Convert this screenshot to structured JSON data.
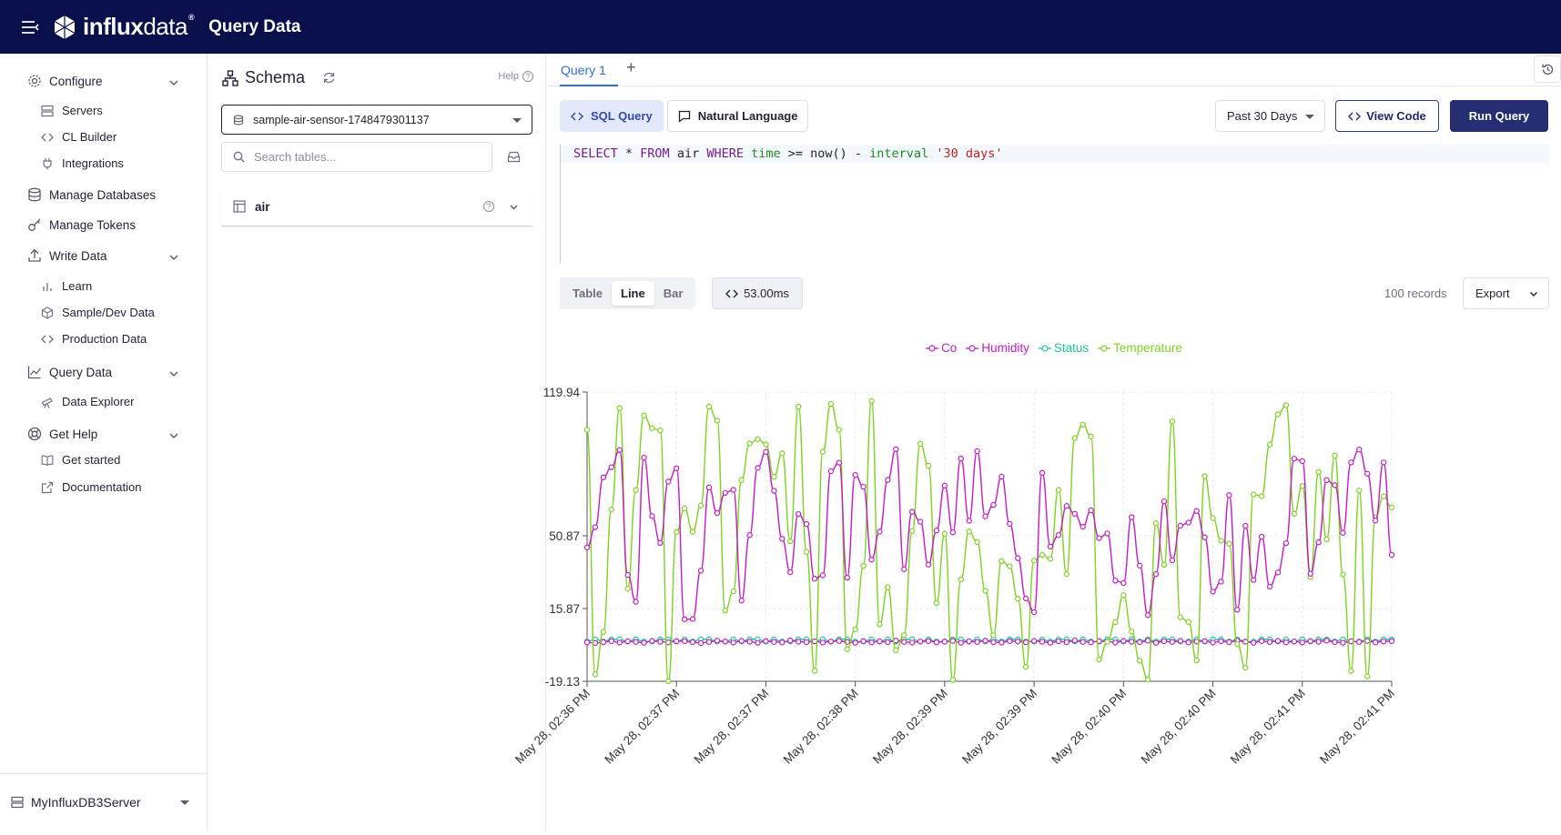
{
  "header": {
    "brand_bold": "influx",
    "brand_light": "data",
    "title": "Query Data"
  },
  "sidebar": {
    "configure": "Configure",
    "servers": "Servers",
    "cl_builder": "CL Builder",
    "integrations": "Integrations",
    "manage_databases": "Manage Databases",
    "manage_tokens": "Manage Tokens",
    "write_data": "Write Data",
    "learn": "Learn",
    "sample_dev_data": "Sample/Dev Data",
    "production_data": "Production Data",
    "query_data": "Query Data",
    "data_explorer": "Data Explorer",
    "get_help": "Get Help",
    "get_started": "Get started",
    "documentation": "Documentation",
    "server_name": "MyInfluxDB3Server"
  },
  "schema": {
    "title": "Schema",
    "help": "Help",
    "database": "sample-air-sensor-1748479301137",
    "search_placeholder": "Search tables...",
    "tables": [
      "air"
    ]
  },
  "query": {
    "tab": "Query 1",
    "sql_mode": "SQL Query",
    "natural_mode": "Natural Language",
    "time_range": "Past 30 Days",
    "view_code": "View Code",
    "run": "Run Query",
    "sql_parts": {
      "select": "SELECT",
      "star": " * ",
      "from": "FROM",
      "table": " air ",
      "where": "WHERE",
      "time": " time",
      "op": " >= now() - ",
      "interval": "interval",
      "value": " '30 days'"
    }
  },
  "results": {
    "views": [
      "Table",
      "Line",
      "Bar"
    ],
    "active_view": "Line",
    "timing": "53.00ms",
    "records": "100 records",
    "export": "Export"
  },
  "colors": {
    "co": "#c41ec4",
    "humidity": "#c41ec4",
    "status": "#1ec79a",
    "temperature": "#7ed321",
    "brand": "#080f4a",
    "accent": "#2f6fd6"
  },
  "chart_data": {
    "type": "line",
    "yticks": [
      "119.94",
      "50.87",
      "15.87",
      "-19.13"
    ],
    "xticks": [
      "May 28, 02:36 PM",
      "May 28, 02:37 PM",
      "May 28, 02:37 PM",
      "May 28, 02:38 PM",
      "May 28, 02:39 PM",
      "May 28, 02:39 PM",
      "May 28, 02:40 PM",
      "May 28, 02:40 PM",
      "May 28, 02:41 PM",
      "May 28, 02:41 PM"
    ],
    "ylim": [
      -19.13,
      119.94
    ],
    "legend_position": "top-center",
    "series": [
      {
        "name": "Co",
        "values": [
          -0.4,
          -0.7,
          -0.3,
          0.2,
          -0.5,
          0.1,
          -0.2,
          -0.6,
          0.3,
          -0.1,
          -0.4,
          0.2,
          0.1,
          -0.3,
          -0.7,
          -0.2,
          0.4,
          0.0,
          -0.5,
          0.3,
          -0.1,
          -0.6,
          0.2,
          -0.2,
          -0.4,
          0.5,
          -0.1,
          -0.3,
          0.1,
          -0.5,
          0.0,
          0.3,
          -0.2,
          -0.6,
          0.2,
          -0.4,
          0.1,
          -0.3,
          0.4,
          -0.2,
          -0.5,
          0.0,
          0.2,
          -0.4,
          -0.1,
          0.3,
          -0.6,
          0.1,
          -0.2,
          0.4,
          -0.3,
          -0.5,
          0.2,
          0.0,
          -0.4,
          0.3,
          -0.1,
          -0.6,
          0.1,
          -0.3,
          0.5,
          -0.2,
          -0.4,
          0.2,
          0.0,
          -0.5,
          0.3,
          -0.1,
          -0.3,
          0.4,
          -0.6,
          0.1,
          -0.2,
          0.3,
          -0.4,
          0.0,
          0.2,
          -0.5,
          0.1,
          -0.3,
          0.4,
          -0.1,
          -0.6,
          0.2,
          -0.2,
          0.3,
          -0.4,
          0.0,
          -0.5,
          0.2,
          -0.1,
          0.4,
          -0.3,
          -0.6,
          0.1,
          -0.2,
          0.3,
          -0.4,
          0.0,
          0.2
        ]
      },
      {
        "name": "Humidity",
        "values": [
          45.2,
          55.0,
          78.9,
          83.8,
          92.1,
          32.0,
          19.1,
          88.4,
          60.3,
          47.4,
          76.9,
          83.3,
          10.7,
          10.8,
          34.1,
          74.1,
          61.8,
          71.5,
          72.9,
          19.7,
          51.2,
          83.5,
          91.2,
          72.5,
          49.4,
          33.3,
          61.3,
          56.5,
          30.2,
          31.9,
          81.9,
          86.0,
          30.7,
          80.1,
          74.4,
          39.4,
          52.9,
          77.7,
          92.5,
          34.8,
          62.4,
          57.6,
          37.0,
          53.4,
          75.0,
          52.5,
          88.0,
          58.1,
          91.5,
          60.2,
          65.7,
          79.3,
          56.6,
          40.1,
          20.7,
          14.1,
          81.1,
          45.7,
          51.2,
          65.2,
          61.4,
          55.2,
          63.1,
          49.7,
          52.0,
          29.3,
          28.1,
          59.8,
          36.5,
          12.7,
          32.4,
          67.4,
          39.1,
          55.7,
          57.2,
          62.8,
          50.1,
          24.0,
          28.8,
          70.4,
          15.3,
          55.7,
          29.6,
          50.4,
          26.4,
          33.2,
          47.3,
          87.9,
          86.7,
          32.6,
          47.7,
          77.6,
          75.2,
          52.3,
          86.1,
          92.3,
          80.7,
          58.2,
          86.1,
          41.7
        ]
      },
      {
        "name": "Status",
        "values": [
          0,
          1,
          0,
          1,
          1,
          0,
          1,
          0,
          0,
          1,
          1,
          0,
          1,
          0,
          1,
          1,
          0,
          0,
          1,
          0,
          1,
          1,
          0,
          1,
          0,
          0,
          1,
          1,
          0,
          1,
          0,
          1,
          1,
          0,
          0,
          1,
          0,
          1,
          0,
          1,
          1,
          0,
          1,
          0,
          0,
          1,
          1,
          0,
          1,
          0,
          1,
          0,
          1,
          1,
          0,
          0,
          1,
          0,
          1,
          1,
          0,
          1,
          0,
          0,
          1,
          1,
          0,
          1,
          0,
          1,
          0,
          1,
          1,
          0,
          0,
          1,
          0,
          1,
          1,
          0,
          1,
          0,
          0,
          1,
          1,
          0,
          1,
          0,
          1,
          0,
          1,
          1,
          0,
          1,
          0,
          0,
          1,
          0,
          1,
          1
        ]
      },
      {
        "name": "Temperature",
        "values": [
          101.8,
          -15.8,
          4.6,
          63.5,
          112.2,
          25.4,
          72.8,
          108.7,
          102.6,
          101.5,
          -19.1,
          52.7,
          64.0,
          52.8,
          65.4,
          112.9,
          106.2,
          14.9,
          24.2,
          77.6,
          95.2,
          97.3,
          94.8,
          79.2,
          90.5,
          48.2,
          112.9,
          43.1,
          -14.1,
          91.2,
          114.2,
          101.8,
          -3.7,
          5.9,
          36.4,
          115.6,
          8.3,
          26.1,
          -4.2,
          3.1,
          53.1,
          95.1,
          84.5,
          18.6,
          51.8,
          -18.5,
          29.8,
          52.9,
          47.9,
          24.4,
          3.0,
          38.7,
          36.2,
          20.6,
          -12.2,
          38.9,
          41.7,
          39.7,
          72.9,
          32.5,
          97.8,
          104.3,
          98.6,
          -8.7,
          -0.2,
          9.3,
          22.3,
          4.8,
          -9.2,
          -18.2,
          56.9,
          36.9,
          105.8,
          11.7,
          9.4,
          -9.1,
          79.5,
          59.3,
          48.5,
          47.1,
          -1.3,
          -12.6,
          70.7,
          69.9,
          94.7,
          109.2,
          113.6,
          61.4,
          74.8,
          31.0,
          81.5,
          49.1,
          89.4,
          32.2,
          -14.1,
          72.6,
          -16.8,
          59.7,
          69.8,
          64.4
        ]
      }
    ]
  }
}
